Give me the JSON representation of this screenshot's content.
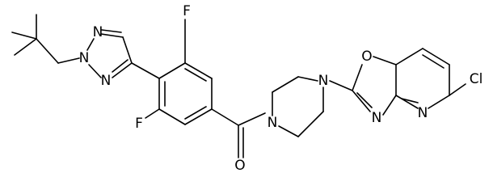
{
  "atoms": {
    "triazole_n1": "N",
    "triazole_n2": "N",
    "triazole_n3": "N",
    "fluorine_top": "F",
    "fluorine_bottom": "F",
    "carbonyl_o": "O",
    "piperazine_n1": "N",
    "piperazine_n4": "N",
    "oxazole_o": "O",
    "oxazole_n": "N",
    "pyridine_n": "N",
    "chlorine": "Cl"
  }
}
